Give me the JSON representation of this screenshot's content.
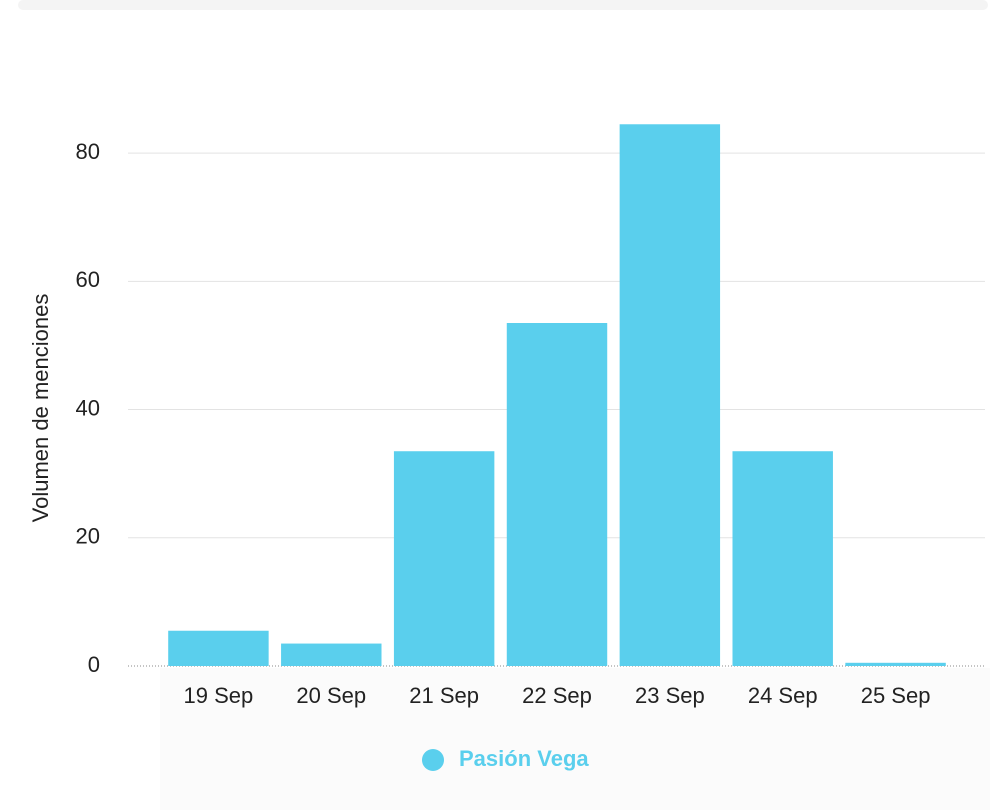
{
  "chart_data": {
    "type": "bar",
    "y_label": "Volumen de menciones",
    "categories": [
      "19 Sep",
      "20 Sep",
      "21 Sep",
      "22 Sep",
      "23 Sep",
      "24 Sep",
      "25 Sep"
    ],
    "series": [
      {
        "name": "Pasión Vega",
        "color": "#5acfed",
        "values": [
          5.5,
          3.5,
          33.5,
          53.5,
          84.5,
          33.5,
          0.5
        ]
      }
    ],
    "ylim": [
      0,
      90
    ],
    "yticks": [
      0,
      20,
      40,
      60,
      80
    ],
    "grid": true,
    "legend": "bottom"
  }
}
